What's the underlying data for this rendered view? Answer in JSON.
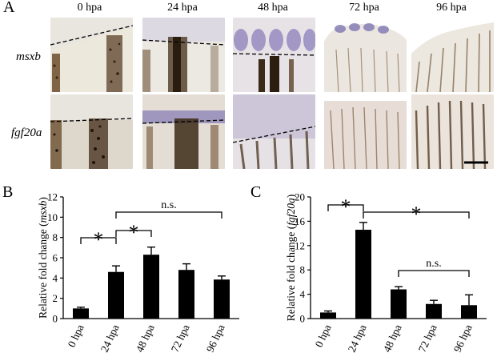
{
  "panel_a": {
    "letter": "A",
    "columns": [
      "0 hpa",
      "24 hpa",
      "48 hpa",
      "72 hpa",
      "96 hpa"
    ],
    "rows": [
      "msxb",
      "fgf20a"
    ]
  },
  "chart_data": [
    {
      "letter": "B",
      "type": "bar",
      "categories": [
        "0 hpa",
        "24 hpa",
        "48 hpa",
        "72 hpa",
        "96 hpa"
      ],
      "values": [
        1.0,
        4.6,
        6.3,
        4.8,
        3.85
      ],
      "errors": [
        0.12,
        0.6,
        0.75,
        0.6,
        0.35
      ],
      "ylabel_prefix": "Relative fold change (",
      "ylabel_gene": "msxb",
      "ylabel_suffix": ")",
      "ylim": [
        0,
        12
      ],
      "yticks": [
        "0",
        "2",
        "4",
        "6",
        "8",
        "10",
        "12"
      ],
      "annotations": [
        "*",
        "*",
        "n.s."
      ]
    },
    {
      "letter": "C",
      "type": "bar",
      "categories": [
        "0 hpa",
        "24 hpa",
        "48 hpa",
        "72 hpa",
        "96 hpa"
      ],
      "values": [
        1.0,
        14.6,
        4.8,
        2.4,
        2.2
      ],
      "errors": [
        0.25,
        1.2,
        0.45,
        0.6,
        1.7
      ],
      "ylabel_prefix": "Relative fold change (",
      "ylabel_gene": "fgf20a",
      "ylabel_suffix": ")",
      "ylim": [
        0,
        20
      ],
      "yticks": [
        "0",
        "4",
        "8",
        "12",
        "16",
        "20"
      ],
      "annotations": [
        "*",
        "*",
        "n.s."
      ]
    }
  ],
  "colors": {
    "bar": "#000000",
    "stain": "#5a4f9a",
    "pigment": "#3b2a17",
    "tissue": "#ece7dd"
  }
}
